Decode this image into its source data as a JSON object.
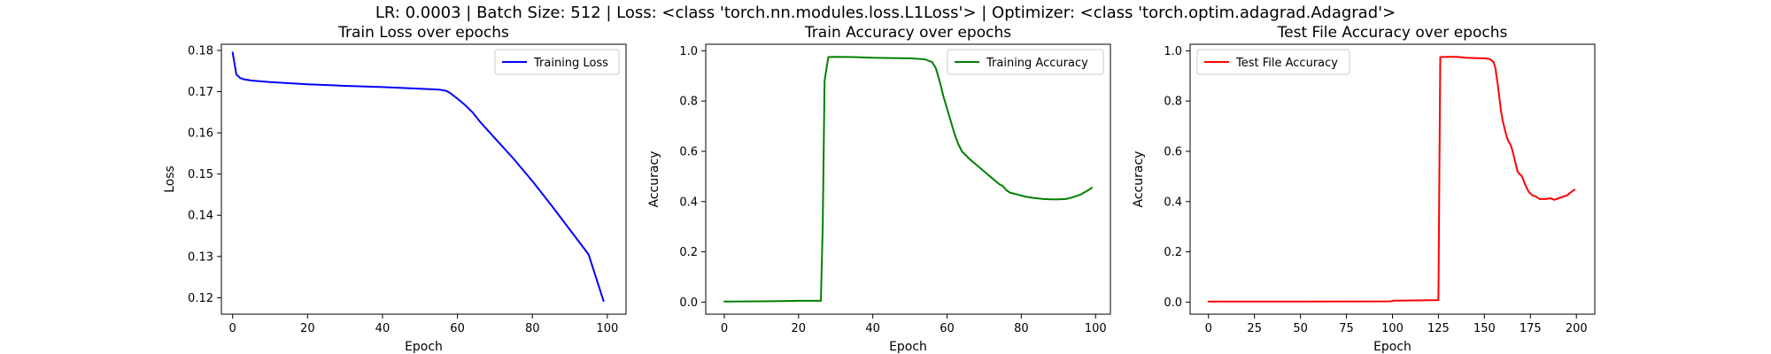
{
  "figure": {
    "suptitle": "LR: 0.0003 | Batch Size: 512 | Loss: <class 'torch.nn.modules.loss.L1Loss'> | Optimizer: <class 'torch.optim.adagrad.Adagrad'>"
  },
  "chart_data": [
    {
      "type": "line",
      "title": "Train Loss over epochs",
      "xlabel": "Epoch",
      "ylabel": "Loss",
      "xlim": [
        -3,
        105
      ],
      "ylim": [
        0.116,
        0.1815
      ],
      "xticks": [
        0,
        20,
        40,
        60,
        80,
        100
      ],
      "yticks": [
        0.12,
        0.13,
        0.14,
        0.15,
        0.16,
        0.17,
        0.18
      ],
      "ytick_decimals": 2,
      "legend_position": "top-right",
      "grid": false,
      "series": [
        {
          "name": "Training Loss",
          "color": "#0000ff",
          "points": [
            [
              0,
              0.1795
            ],
            [
              1,
              0.1742
            ],
            [
              2,
              0.1733
            ],
            [
              3,
              0.173
            ],
            [
              5,
              0.1727
            ],
            [
              10,
              0.1723
            ],
            [
              20,
              0.1718
            ],
            [
              30,
              0.1714
            ],
            [
              40,
              0.1711
            ],
            [
              50,
              0.1707
            ],
            [
              55,
              0.1705
            ],
            [
              57,
              0.1702
            ],
            [
              58,
              0.1697
            ],
            [
              60,
              0.1683
            ],
            [
              62,
              0.1668
            ],
            [
              64,
              0.165
            ],
            [
              66,
              0.1627
            ],
            [
              70,
              0.1587
            ],
            [
              75,
              0.1537
            ],
            [
              80,
              0.1483
            ],
            [
              85,
              0.1425
            ],
            [
              90,
              0.1365
            ],
            [
              95,
              0.1305
            ],
            [
              99,
              0.1192
            ]
          ]
        }
      ]
    },
    {
      "type": "line",
      "title": "Train Accuracy over epochs",
      "xlabel": "Epoch",
      "ylabel": "Accuracy",
      "xlim": [
        -5,
        104
      ],
      "ylim": [
        -0.048,
        1.026
      ],
      "xticks": [
        0,
        20,
        40,
        60,
        80,
        100
      ],
      "yticks": [
        0.0,
        0.2,
        0.4,
        0.6,
        0.8,
        1.0
      ],
      "ytick_decimals": 1,
      "legend_position": "top-right",
      "grid": false,
      "series": [
        {
          "name": "Training Accuracy",
          "color": "#008000",
          "points": [
            [
              0,
              0.002
            ],
            [
              10,
              0.003
            ],
            [
              20,
              0.005
            ],
            [
              26,
              0.005
            ],
            [
              26.5,
              0.3
            ],
            [
              27,
              0.88
            ],
            [
              28,
              0.975
            ],
            [
              30,
              0.976
            ],
            [
              35,
              0.975
            ],
            [
              40,
              0.972
            ],
            [
              45,
              0.971
            ],
            [
              50,
              0.97
            ],
            [
              54,
              0.966
            ],
            [
              56,
              0.955
            ],
            [
              57,
              0.93
            ],
            [
              58,
              0.88
            ],
            [
              59,
              0.82
            ],
            [
              60,
              0.77
            ],
            [
              61,
              0.72
            ],
            [
              62,
              0.67
            ],
            [
              63,
              0.63
            ],
            [
              64,
              0.6
            ],
            [
              66,
              0.57
            ],
            [
              68,
              0.545
            ],
            [
              70,
              0.52
            ],
            [
              72,
              0.495
            ],
            [
              74,
              0.47
            ],
            [
              75,
              0.462
            ],
            [
              76,
              0.445
            ],
            [
              77,
              0.435
            ],
            [
              79,
              0.428
            ],
            [
              81,
              0.42
            ],
            [
              83,
              0.415
            ],
            [
              86,
              0.41
            ],
            [
              88,
              0.409
            ],
            [
              90,
              0.409
            ],
            [
              92,
              0.41
            ],
            [
              94,
              0.418
            ],
            [
              96,
              0.428
            ],
            [
              98,
              0.445
            ],
            [
              99,
              0.455
            ]
          ]
        }
      ]
    },
    {
      "type": "line",
      "title": "Test File Accuracy over epochs",
      "xlabel": "Epoch",
      "ylabel": "Accuracy",
      "xlim": [
        -10,
        210
      ],
      "ylim": [
        -0.048,
        1.026
      ],
      "xticks": [
        0,
        25,
        50,
        75,
        100,
        125,
        150,
        175,
        200
      ],
      "yticks": [
        0.0,
        0.2,
        0.4,
        0.6,
        0.8,
        1.0
      ],
      "ytick_decimals": 1,
      "legend_position": "top-left",
      "grid": false,
      "series": [
        {
          "name": "Test File Accuracy",
          "color": "#ff0000",
          "points": [
            [
              0,
              0.002
            ],
            [
              50,
              0.002
            ],
            [
              99,
              0.003
            ],
            [
              101,
              0.006
            ],
            [
              125,
              0.008
            ],
            [
              126,
              0.975
            ],
            [
              130,
              0.976
            ],
            [
              135,
              0.976
            ],
            [
              140,
              0.972
            ],
            [
              145,
              0.971
            ],
            [
              150,
              0.97
            ],
            [
              153,
              0.967
            ],
            [
              155,
              0.955
            ],
            [
              156,
              0.93
            ],
            [
              157,
              0.88
            ],
            [
              158,
              0.82
            ],
            [
              159,
              0.76
            ],
            [
              160,
              0.72
            ],
            [
              161,
              0.69
            ],
            [
              162,
              0.66
            ],
            [
              163,
              0.64
            ],
            [
              164,
              0.63
            ],
            [
              165,
              0.61
            ],
            [
              166,
              0.58
            ],
            [
              167,
              0.55
            ],
            [
              168,
              0.52
            ],
            [
              169,
              0.51
            ],
            [
              170,
              0.505
            ],
            [
              171,
              0.49
            ],
            [
              172,
              0.47
            ],
            [
              173,
              0.455
            ],
            [
              174,
              0.44
            ],
            [
              176,
              0.425
            ],
            [
              178,
              0.42
            ],
            [
              180,
              0.41
            ],
            [
              183,
              0.41
            ],
            [
              186,
              0.413
            ],
            [
              188,
              0.407
            ],
            [
              191,
              0.415
            ],
            [
              193,
              0.42
            ],
            [
              195,
              0.425
            ],
            [
              198,
              0.443
            ],
            [
              199,
              0.447
            ]
          ]
        }
      ]
    }
  ]
}
